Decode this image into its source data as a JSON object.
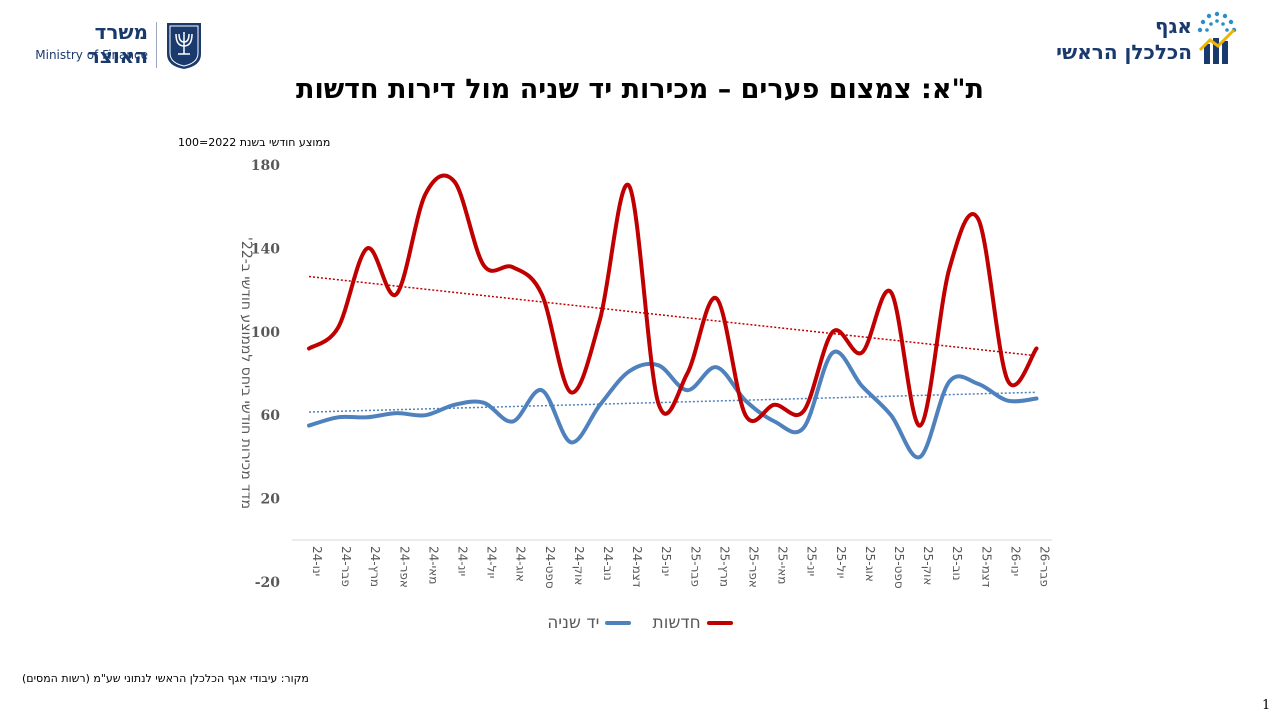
{
  "header": {
    "mof_hebrew": "משרד האוצר",
    "mof_english": "Ministry of Finance",
    "ce_line1": "אגף",
    "ce_line2": "הכלכלן הראשי"
  },
  "title": "ת\"א: צמצום פערים – מכירות יד שניה מול דירות חדשות",
  "unit_note": "ממוצע חודשי בשנת 2022=100",
  "source_note": "מקור: עיבודי אגף הכלכלן הראשי לנתוני שע\"מ (רשות המסים)",
  "page_number": "1",
  "colors": {
    "new": "#c00000",
    "secondhand": "#4f81bd"
  },
  "chart_data": {
    "type": "line",
    "ylabel": "מדד מכירות חודשי ביחס לממוצע חודשי ב-22'",
    "ylim": [
      -20,
      180
    ],
    "yticks": [
      -20,
      20,
      60,
      100,
      140,
      180
    ],
    "categories": [
      "ינו-24",
      "פבר-24",
      "מרץ-24",
      "אפר-24",
      "מאי-24",
      "יונ-24",
      "יול-24",
      "אוג-24",
      "ספט-24",
      "אוק-24",
      "נוב-24",
      "דצמ-24",
      "ינו-25",
      "פבר-25",
      "מרץ-25",
      "אפר-25",
      "מאי-25",
      "יונ-25",
      "יול-25",
      "אוג-25",
      "ספט-25",
      "אוק-25",
      "נוב-25",
      "דצמ-25",
      "ינו-26",
      "פבר-26"
    ],
    "series": [
      {
        "name": "חדשות",
        "color": "#c00000",
        "values": [
          92,
          102,
          140,
          118,
          166,
          172,
          132,
          131,
          118,
          71,
          106,
          170,
          66,
          80,
          116,
          60,
          65,
          62,
          100,
          90,
          119,
          55,
          130,
          154,
          77,
          92
        ],
        "trend": [
          126.5,
          88.5
        ]
      },
      {
        "name": "יד שניה",
        "color": "#4f81bd",
        "values": [
          55,
          59,
          59,
          61,
          60,
          65,
          66,
          57,
          72,
          47,
          65,
          81,
          84,
          72,
          83,
          67,
          57,
          54,
          90,
          74,
          60,
          40,
          76,
          75,
          67,
          68
        ],
        "trend": [
          61.5,
          71
        ]
      }
    ],
    "legend": [
      "יד שניה",
      "חדשות"
    ]
  }
}
